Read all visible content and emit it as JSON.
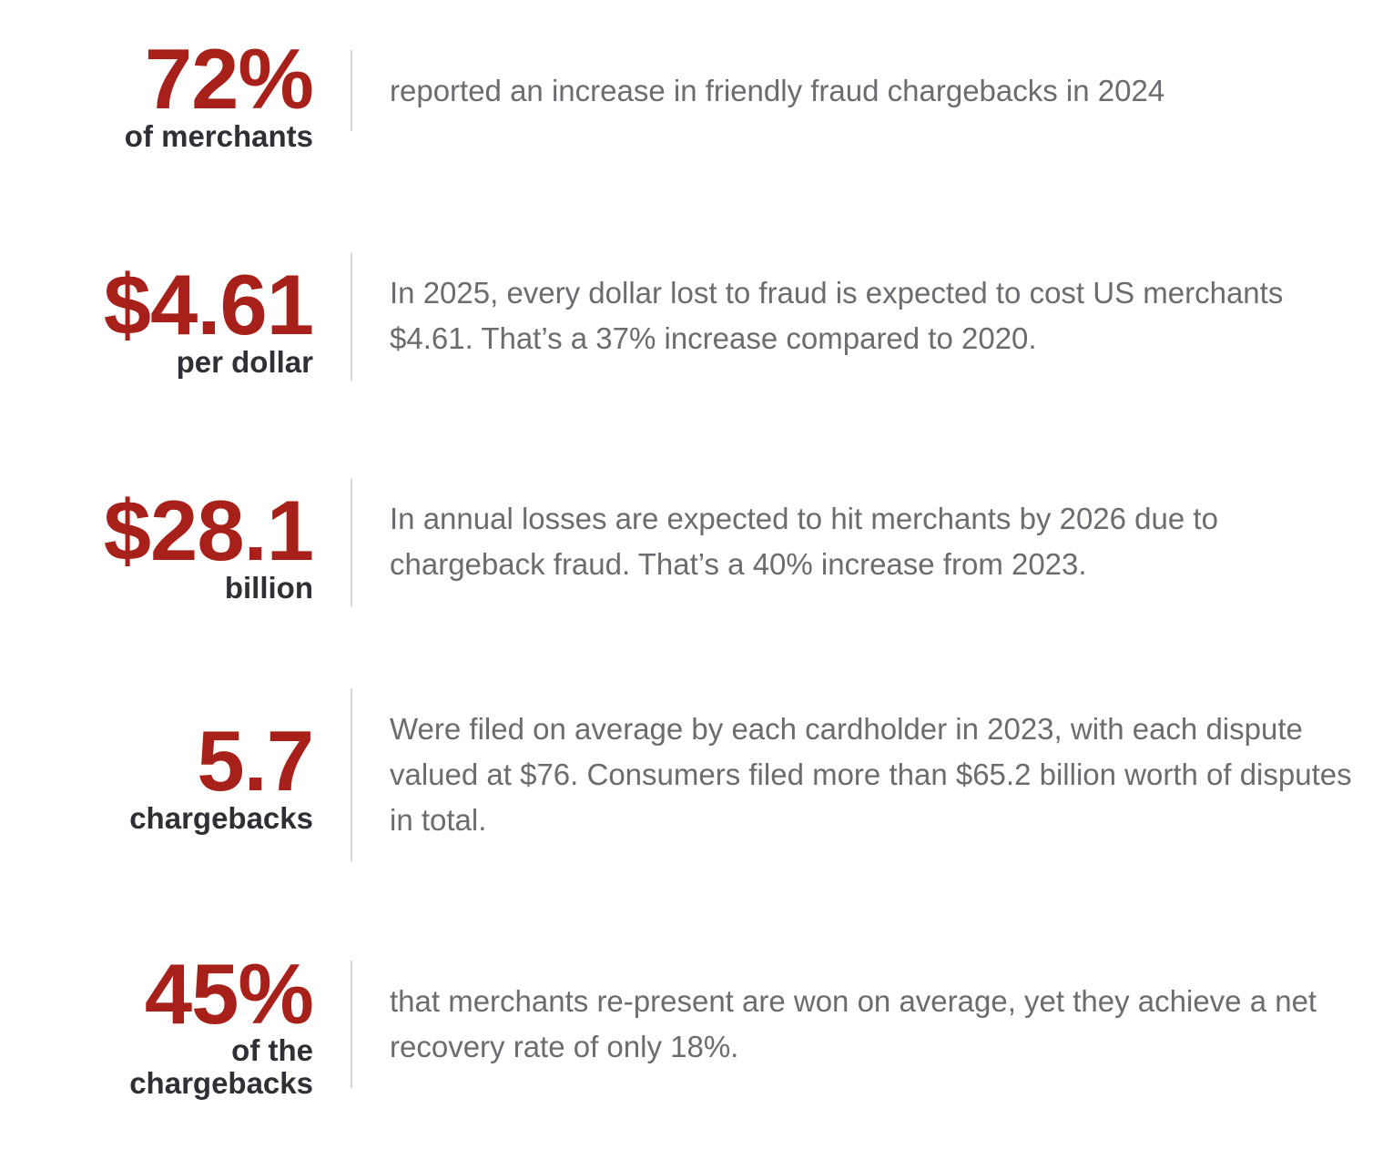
{
  "stats": [
    {
      "value": "72%",
      "unit": "of merchants",
      "description": "reported an increase in friendly fraud chargebacks in 2024"
    },
    {
      "value": "$4.61",
      "unit": "per dollar",
      "description": "In 2025, every dollar lost to fraud is expected to cost US merchants $4.61. That’s a 37% increase compared to 2020."
    },
    {
      "value": "$28.1",
      "unit": "billion",
      "description": "In annual losses are expected to hit merchants by 2026 due to chargeback fraud. That’s a 40% increase from 2023."
    },
    {
      "value": "5.7",
      "unit": "chargebacks",
      "description": "Were filed on average by each cardholder in 2023, with each dispute valued at $76. Consumers filed more than $65.2 billion worth of disputes in total."
    },
    {
      "value": "45%",
      "unit_line1": "of the",
      "unit_line2": "chargebacks",
      "description": "that merchants re-present are won on average, yet they achieve a net recovery rate of only 18%."
    }
  ]
}
